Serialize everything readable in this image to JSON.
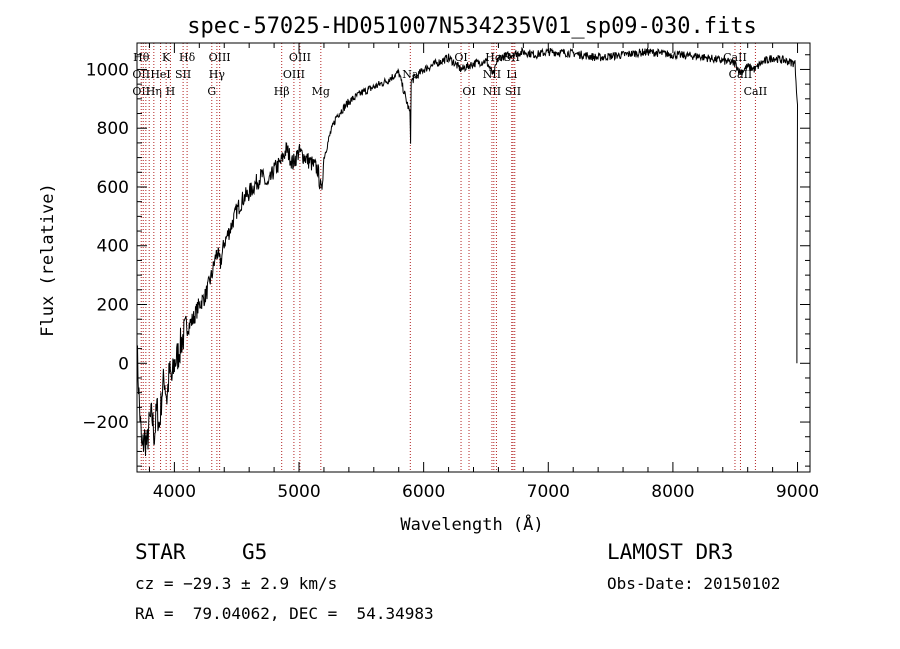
{
  "chart_data": {
    "type": "line",
    "title": "spec-57025-HD051007N534235V01_sp09-030.fits",
    "xlabel": "Wavelength (Å)",
    "ylabel": "Flux (relative)",
    "xlim": [
      3700,
      9100
    ],
    "ylim": [
      -370,
      1090
    ],
    "xticks": [
      4000,
      5000,
      6000,
      7000,
      8000,
      9000
    ],
    "yticks": [
      -200,
      0,
      200,
      400,
      600,
      800,
      1000
    ],
    "grid": false,
    "series": [
      {
        "x": [
          3700,
          3720,
          3740,
          3760,
          3780,
          3800,
          3820,
          3840,
          3860,
          3880,
          3900,
          3920,
          3940,
          3960,
          3980,
          4000,
          4030,
          4060,
          4100,
          4150,
          4200,
          4250,
          4300,
          4340,
          4370,
          4400,
          4450,
          4500,
          4550,
          4600,
          4650,
          4700,
          4750,
          4800,
          4850,
          4900,
          4950,
          5000,
          5050,
          5100,
          5150,
          5180,
          5200,
          5250,
          5300,
          5400,
          5500,
          5600,
          5700,
          5800,
          5890,
          5895,
          5900,
          6000,
          6100,
          6200,
          6300,
          6400,
          6500,
          6560,
          6600,
          6700,
          6800,
          6900,
          7000,
          7200,
          7400,
          7600,
          7800,
          8000,
          8200,
          8400,
          8500,
          8540,
          8600,
          8660,
          8700,
          8800,
          8900,
          8980,
          9000
        ],
        "values": [
          50,
          -150,
          -300,
          -250,
          -280,
          -200,
          -180,
          -250,
          -150,
          -220,
          -100,
          -50,
          -120,
          -30,
          -60,
          0,
          30,
          80,
          120,
          150,
          200,
          230,
          300,
          380,
          340,
          410,
          460,
          520,
          560,
          580,
          610,
          640,
          600,
          660,
          680,
          730,
          680,
          720,
          700,
          680,
          660,
          580,
          700,
          780,
          840,
          890,
          920,
          940,
          960,
          990,
          850,
          760,
          960,
          1000,
          1020,
          1040,
          1000,
          1020,
          1030,
          980,
          1040,
          1050,
          1060,
          1050,
          1060,
          1055,
          1040,
          1050,
          1060,
          1050,
          1045,
          1030,
          1020,
          990,
          1010,
          1000,
          1020,
          1040,
          1030,
          1020,
          880
        ]
      }
    ],
    "lines": [
      {
        "x": 3734,
        "top": "Hθ",
        "mid": "OII",
        "bot": "OII"
      },
      {
        "x": 3750,
        "top": "",
        "mid": "",
        "bot": ""
      },
      {
        "x": 3771,
        "top": "",
        "mid": "",
        "bot": ""
      },
      {
        "x": 3798,
        "top": "",
        "mid": "",
        "bot": ""
      },
      {
        "x": 3835,
        "top": "",
        "mid": "",
        "bot": "Hη"
      },
      {
        "x": 3889,
        "top": "",
        "mid": "HeI",
        "bot": ""
      },
      {
        "x": 3934,
        "top": "K",
        "mid": "",
        "bot": ""
      },
      {
        "x": 3968,
        "top": "",
        "mid": "",
        "bot": "H"
      },
      {
        "x": 4070,
        "top": "",
        "mid": "SII",
        "bot": ""
      },
      {
        "x": 4102,
        "top": "Hδ",
        "mid": "",
        "bot": ""
      },
      {
        "x": 4300,
        "top": "",
        "mid": "",
        "bot": "G"
      },
      {
        "x": 4341,
        "top": "",
        "mid": "Hγ",
        "bot": ""
      },
      {
        "x": 4363,
        "top": "OIII",
        "mid": "",
        "bot": ""
      },
      {
        "x": 4861,
        "top": "",
        "mid": "",
        "bot": "Hβ"
      },
      {
        "x": 4959,
        "top": "",
        "mid": "OIII",
        "bot": ""
      },
      {
        "x": 5007,
        "top": "OIII",
        "mid": "",
        "bot": ""
      },
      {
        "x": 5175,
        "top": "",
        "mid": "",
        "bot": "Mg"
      },
      {
        "x": 5893,
        "top": "",
        "mid": "Na",
        "bot": ""
      },
      {
        "x": 6300,
        "top": "OI",
        "mid": "",
        "bot": ""
      },
      {
        "x": 6364,
        "top": "",
        "mid": "",
        "bot": "OI"
      },
      {
        "x": 6548,
        "top": "",
        "mid": "NII",
        "bot": "NII"
      },
      {
        "x": 6563,
        "top": "Hα",
        "mid": "",
        "bot": ""
      },
      {
        "x": 6584,
        "top": "",
        "mid": "",
        "bot": ""
      },
      {
        "x": 6707,
        "top": "SII",
        "mid": "Li",
        "bot": ""
      },
      {
        "x": 6717,
        "top": "",
        "mid": "",
        "bot": "SII"
      },
      {
        "x": 6731,
        "top": "",
        "mid": "",
        "bot": ""
      },
      {
        "x": 8498,
        "top": "CaII",
        "mid": "",
        "bot": ""
      },
      {
        "x": 8542,
        "top": "",
        "mid": "CaII",
        "bot": ""
      },
      {
        "x": 8662,
        "top": "",
        "mid": "",
        "bot": "CaII"
      }
    ]
  },
  "info": {
    "class": "STAR",
    "subclass": "G5",
    "survey": "LAMOST DR3",
    "cz": "cz = −29.3 ± 2.9 km/s",
    "obsdate": "Obs-Date: 20150102",
    "radec": "RA =  79.04062, DEC =  54.34983"
  }
}
